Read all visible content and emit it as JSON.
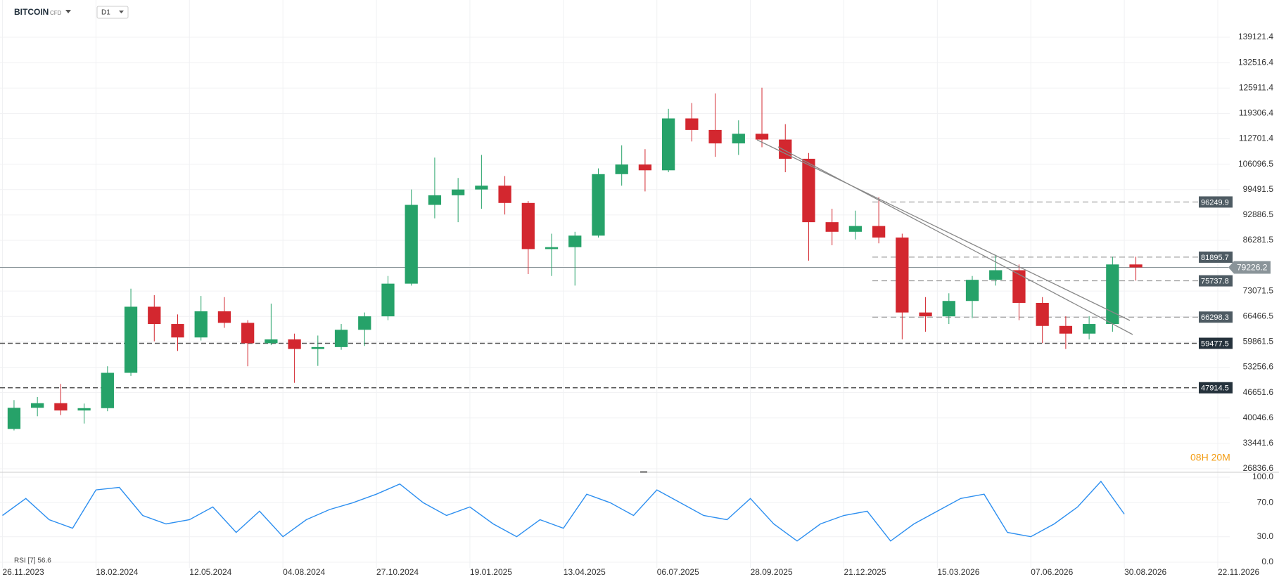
{
  "header": {
    "symbol": "BITCOIN",
    "badge": "CFD",
    "interval": "D1",
    "countdown": "08H 20M"
  },
  "chart_data": [
    {
      "type": "candlestick",
      "x": [
        "26.11.2023",
        "17.12.2023",
        "07.01.2024",
        "28.01.2024",
        "18.02.2024",
        "10.03.2024",
        "31.03.2024",
        "21.04.2024",
        "12.05.2024",
        "02.06.2024",
        "23.06.2024",
        "14.07.2024",
        "04.08.2024",
        "25.08.2024",
        "15.09.2024",
        "06.10.2024",
        "27.10.2024",
        "17.11.2024",
        "08.12.2024",
        "29.12.2024",
        "19.01.2025",
        "09.02.2025",
        "02.03.2025",
        "23.03.2025",
        "13.04.2025",
        "04.05.2025",
        "25.05.2025",
        "15.06.2025",
        "06.07.2025",
        "27.07.2025",
        "17.08.2025",
        "07.09.2025",
        "28.09.2025",
        "19.10.2025",
        "09.11.2025",
        "30.11.2025",
        "21.12.2025",
        "11.01.2026",
        "01.02.2026",
        "22.02.2026",
        "15.03.2026",
        "05.04.2026",
        "26.04.2026",
        "17.05.2026",
        "07.06.2026",
        "28.06.2026",
        "19.07.2026",
        "09.08.2026",
        "30.08.2026"
      ],
      "open": [
        37200,
        42700,
        43900,
        42000,
        42600,
        51800,
        69000,
        64500,
        61000,
        67800,
        64800,
        59500,
        60500,
        58000,
        58500,
        63000,
        66500,
        75000,
        95500,
        98000,
        99500,
        100500,
        96000,
        84000,
        84500,
        87500,
        103500,
        106000,
        104500,
        118000,
        115000,
        111500,
        114000,
        112500,
        107500,
        91000,
        88500,
        90000,
        87000,
        67500,
        66500,
        70500,
        76000,
        78500,
        70000,
        64000,
        62000,
        64500,
        80000
      ],
      "high": [
        44700,
        45500,
        48900,
        43800,
        53500,
        73700,
        72000,
        67000,
        71800,
        71500,
        65500,
        69800,
        62000,
        61500,
        64500,
        67500,
        77000,
        99500,
        107800,
        102500,
        108500,
        103000,
        96500,
        88000,
        88500,
        105000,
        111000,
        110000,
        120500,
        122000,
        124500,
        117500,
        126000,
        116500,
        109000,
        94500,
        94000,
        97500,
        88000,
        71500,
        72500,
        77000,
        82500,
        80000,
        71500,
        66500,
        66500,
        82000,
        82000
      ],
      "low": [
        36800,
        40500,
        40800,
        38600,
        41800,
        51000,
        60000,
        57500,
        60200,
        63500,
        53500,
        59000,
        49200,
        53600,
        57800,
        58800,
        65500,
        74500,
        92000,
        91000,
        94500,
        93000,
        77500,
        77000,
        74500,
        87000,
        100500,
        99000,
        104000,
        112000,
        108000,
        108500,
        110500,
        104000,
        81000,
        85000,
        86500,
        85500,
        60500,
        62500,
        64500,
        66000,
        74500,
        65500,
        59500,
        58000,
        60500,
        62500,
        75800
      ],
      "close": [
        42700,
        43900,
        42000,
        42600,
        51800,
        69000,
        64500,
        61000,
        67800,
        64800,
        59500,
        60500,
        58000,
        58500,
        63000,
        66500,
        75000,
        95500,
        98000,
        99500,
        100500,
        96000,
        84000,
        84500,
        87500,
        103500,
        106000,
        104500,
        118000,
        115000,
        111500,
        114000,
        112500,
        107500,
        91000,
        88500,
        90000,
        87000,
        67500,
        66500,
        70500,
        76000,
        78500,
        70000,
        64000,
        62000,
        64500,
        80000,
        79226.2
      ],
      "up_color": "#26a269",
      "down_color": "#d3272f",
      "xlim": [
        "26.11.2023",
        "22.11.2026"
      ],
      "xticks": [
        "26.11.2023",
        "18.02.2024",
        "12.05.2024",
        "04.08.2024",
        "27.10.2024",
        "19.01.2025",
        "13.04.2025",
        "06.07.2025",
        "28.09.2025",
        "21.12.2025",
        "15.03.2026",
        "07.06.2026",
        "30.08.2026",
        "22.11.2026"
      ],
      "ylim": [
        26836.6,
        139121.4
      ],
      "yticks": [
        26836.6,
        33441.6,
        40046.6,
        46651.6,
        53256.6,
        59861.5,
        66466.5,
        73071.5,
        86281.5,
        92886.5,
        99491.5,
        106096.5,
        112701.4,
        119306.4,
        125911.4,
        132516.4,
        139121.4
      ],
      "grid": true,
      "levels": [
        96249.9,
        81895.7,
        75737.8,
        66298.3,
        59477.5,
        47914.5
      ],
      "level_styles": [
        "minor",
        "minor",
        "minor",
        "minor",
        "major",
        "major"
      ],
      "last_price": 79226.2
    },
    {
      "type": "line",
      "title": "RSI [7] 56.6",
      "color": "#2d8ff0",
      "x": [
        "26.11.2023",
        "17.12.2023",
        "07.01.2024",
        "28.01.2024",
        "18.02.2024",
        "10.03.2024",
        "31.03.2024",
        "21.04.2024",
        "12.05.2024",
        "02.06.2024",
        "23.06.2024",
        "14.07.2024",
        "04.08.2024",
        "25.08.2024",
        "15.09.2024",
        "06.10.2024",
        "27.10.2024",
        "17.11.2024",
        "08.12.2024",
        "29.12.2024",
        "19.01.2025",
        "09.02.2025",
        "02.03.2025",
        "23.03.2025",
        "13.04.2025",
        "04.05.2025",
        "25.05.2025",
        "15.06.2025",
        "06.07.2025",
        "27.07.2025",
        "17.08.2025",
        "07.09.2025",
        "28.09.2025",
        "19.10.2025",
        "09.11.2025",
        "30.11.2025",
        "21.12.2025",
        "11.01.2026",
        "01.02.2026",
        "22.02.2026",
        "15.03.2026",
        "05.04.2026",
        "26.04.2026",
        "17.05.2026",
        "07.06.2026",
        "28.06.2026",
        "19.07.2026",
        "09.08.2026",
        "30.08.2026"
      ],
      "values": [
        55,
        75,
        50,
        40,
        85,
        88,
        55,
        45,
        50,
        65,
        35,
        60,
        30,
        50,
        62,
        70,
        80,
        92,
        70,
        55,
        65,
        45,
        30,
        50,
        40,
        80,
        70,
        55,
        85,
        70,
        55,
        50,
        75,
        45,
        25,
        45,
        55,
        60,
        25,
        45,
        60,
        75,
        80,
        35,
        30,
        45,
        65,
        95,
        56.6
      ],
      "ylim": [
        0,
        100
      ],
      "yticks": [
        {
          "value": 0,
          "label": "0.0"
        },
        {
          "value": 30,
          "label": "30.0"
        },
        {
          "value": 70,
          "label": "70.0"
        },
        {
          "value": 100,
          "label": "100.0"
        }
      ]
    }
  ]
}
